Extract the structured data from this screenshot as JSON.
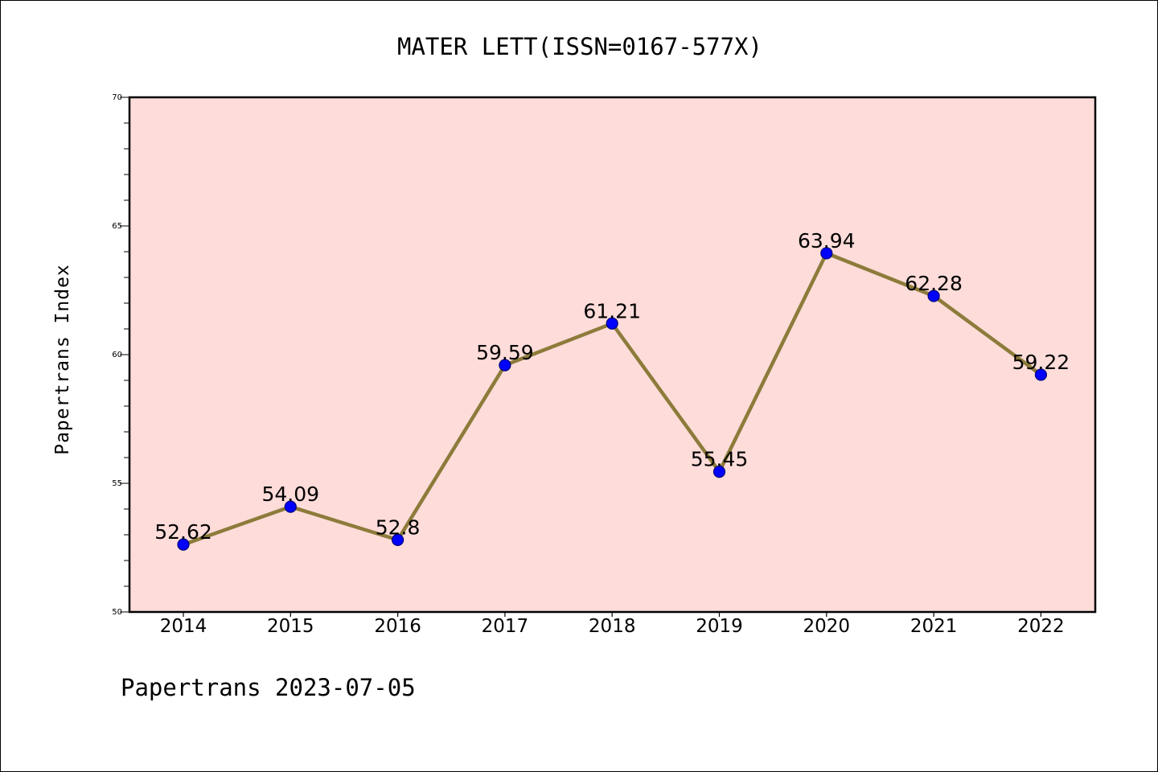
{
  "chart_data": {
    "type": "line",
    "title": "MATER LETT(ISSN=0167-577X)",
    "xlabel": "",
    "ylabel": "Papertrans Index",
    "categories": [
      "2014",
      "2015",
      "2016",
      "2017",
      "2018",
      "2019",
      "2020",
      "2021",
      "2022"
    ],
    "series": [
      {
        "values": [
          52.62,
          54.09,
          52.8,
          59.59,
          61.21,
          55.45,
          63.94,
          62.28,
          59.22
        ],
        "labels": [
          "52.62",
          "54.09",
          "52.8",
          "59.59",
          "61.21",
          "55.45",
          "63.94",
          "62.28",
          "59.22"
        ]
      }
    ],
    "ylim": [
      50,
      70
    ],
    "yticks": [
      50,
      55,
      60,
      65,
      70
    ],
    "ytick_labels": [
      "50",
      "55",
      "60",
      "65",
      "70"
    ],
    "grid": false,
    "footer": "Papertrans 2023-07-05",
    "colors": {
      "plot_background": "#fddcd9",
      "line": "#8c7b3a",
      "marker": "#0000ff",
      "marker_edge": "#00007a",
      "axes": "#000000"
    }
  }
}
